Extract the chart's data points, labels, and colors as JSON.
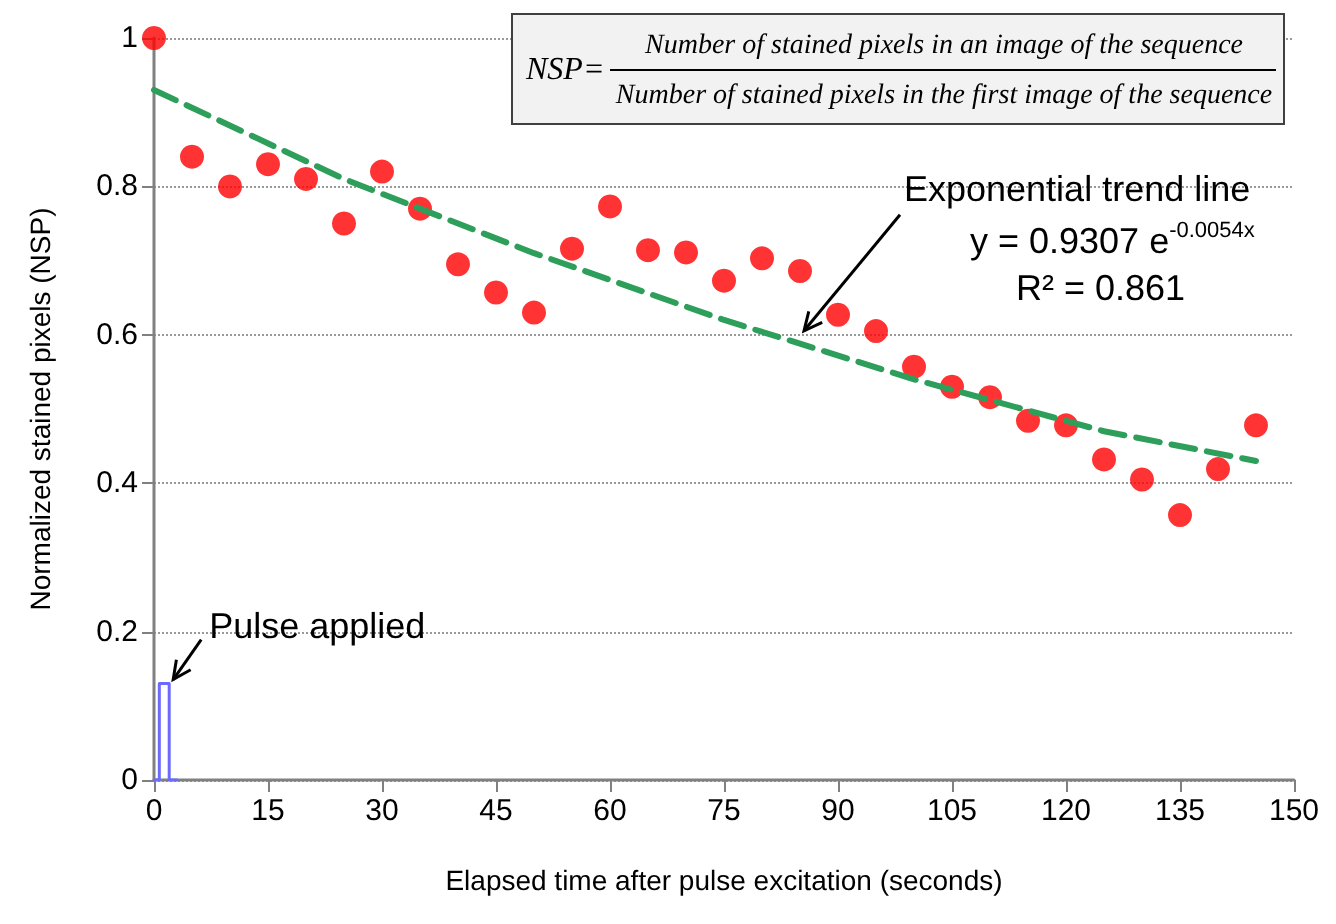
{
  "chart_data": {
    "type": "scatter",
    "xlabel": "Elapsed time after pulse excitation (seconds)",
    "ylabel": "Normalized stained pixels (NSP)",
    "xlim": [
      0,
      150
    ],
    "xticks": [
      0,
      15,
      30,
      45,
      60,
      75,
      90,
      105,
      120,
      135,
      150
    ],
    "ylim": [
      0,
      1
    ],
    "yticks": [
      0,
      0.2,
      0.4,
      0.6,
      0.8,
      1
    ],
    "grid": "y",
    "series": [
      {
        "marker": "circle",
        "color": "#ff0000",
        "x": [
          0,
          5,
          10,
          15,
          20,
          25,
          30,
          35,
          40,
          45,
          50,
          55,
          60,
          65,
          70,
          75,
          80,
          85,
          90,
          95,
          100,
          105,
          110,
          115,
          120,
          125,
          130,
          135,
          140,
          145
        ],
        "values": [
          1,
          0.84,
          0.8,
          0.83,
          0.81,
          0.75,
          0.82,
          0.77,
          0.695,
          0.657,
          0.63,
          0.716,
          0.773,
          0.714,
          0.711,
          0.673,
          0.703,
          0.686,
          0.627,
          0.605,
          0.557,
          0.53,
          0.516,
          0.484,
          0.478,
          0.432,
          0.405,
          0.357,
          0.419,
          0.478
        ]
      },
      {
        "type": "line",
        "marker": "none",
        "line_style": "dashed",
        "color": "#2e9e5b",
        "x": [
          0,
          25,
          50,
          75,
          100,
          125,
          145
        ],
        "values": [
          0.93,
          0.81,
          0.71,
          0.62,
          0.54,
          0.47,
          0.43
        ]
      },
      {
        "type": "line",
        "marker": "none",
        "line_style": "solid",
        "color": "#6a6aff",
        "x": [
          0,
          0.7,
          0.7,
          2,
          2,
          3
        ],
        "values": [
          0,
          0,
          0.13,
          0.13,
          0,
          0
        ]
      }
    ],
    "annotations": [
      "NSP=",
      "Number of stained pixels in an image of the sequence",
      "Number of stained pixels in the first image of the sequence",
      {
        "text": "Exponential trend line",
        "x": 85,
        "y": 0.6
      },
      "y = 0.9307 e$^{-0.0054x}$",
      "R² = 0.861",
      {
        "text": "Pulse applied",
        "x": 2,
        "y": 0.13
      }
    ]
  }
}
